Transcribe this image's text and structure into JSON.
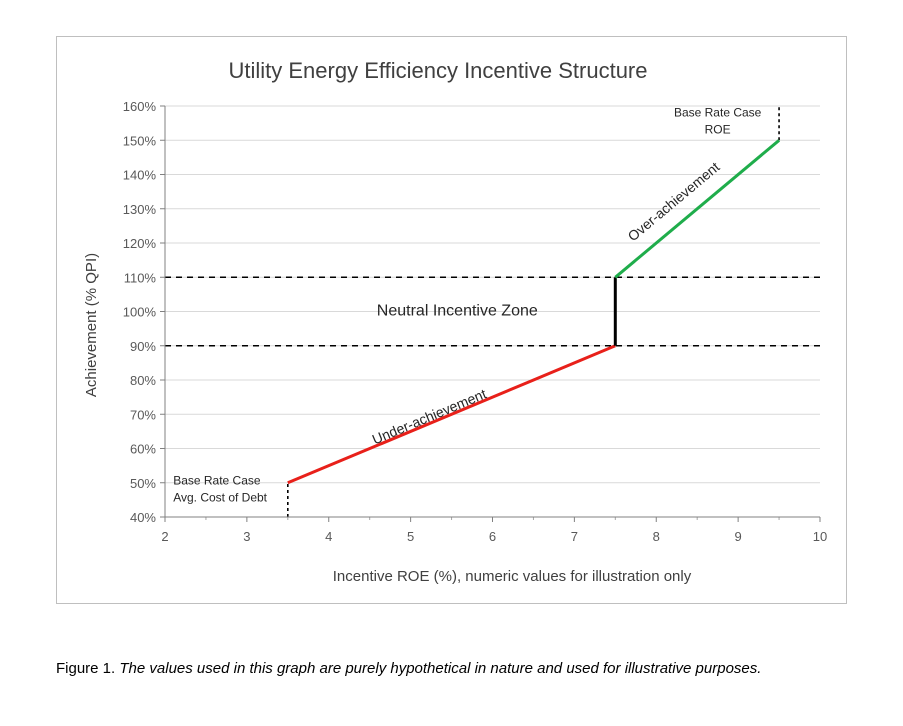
{
  "chart_data": {
    "type": "line",
    "title": "Utility Energy Efficiency Incentive Structure",
    "xlabel": "Incentive ROE (%), numeric values for illustration only",
    "ylabel": "Achievement (% QPI)",
    "xlim": [
      2,
      10
    ],
    "ylim": [
      40,
      160
    ],
    "x_ticks": [
      "2",
      "3",
      "4",
      "5",
      "6",
      "7",
      "8",
      "9",
      "10"
    ],
    "y_ticks": [
      "40%",
      "50%",
      "60%",
      "70%",
      "80%",
      "90%",
      "100%",
      "110%",
      "120%",
      "130%",
      "140%",
      "150%",
      "160%"
    ],
    "grid": "horizontal",
    "series": [
      {
        "key": "under",
        "color": "#e8201a",
        "points": [
          [
            3.5,
            50
          ],
          [
            7.5,
            90
          ]
        ]
      },
      {
        "key": "neutral",
        "color": "#000000",
        "points": [
          [
            7.5,
            90
          ],
          [
            7.5,
            110
          ]
        ]
      },
      {
        "key": "over",
        "color": "#1fad4b",
        "points": [
          [
            7.5,
            110
          ],
          [
            9.5,
            150
          ]
        ]
      }
    ],
    "reference_lines": [
      {
        "axis": "y",
        "value": 90,
        "style": "dashed"
      },
      {
        "axis": "y",
        "value": 110,
        "style": "dashed"
      }
    ],
    "marker_lines": [
      {
        "x": 3.5,
        "y_from": 40,
        "y_to": 50,
        "style": "dotted"
      },
      {
        "x": 9.5,
        "y_from": 150,
        "y_to": 160,
        "style": "dotted"
      }
    ],
    "annotations": {
      "neutral_zone": "Neutral Incentive Zone",
      "under": "Under-achievement",
      "over": "Over-achievement",
      "base_low_line1": "Base Rate Case",
      "base_low_line2": "Avg. Cost of Debt",
      "base_high_line1": "Base Rate Case",
      "base_high_line2": "ROE"
    }
  },
  "caption": {
    "prefix": "Figure 1. ",
    "body": "The values used in this graph are purely hypothetical in nature and used for illustrative purposes."
  }
}
